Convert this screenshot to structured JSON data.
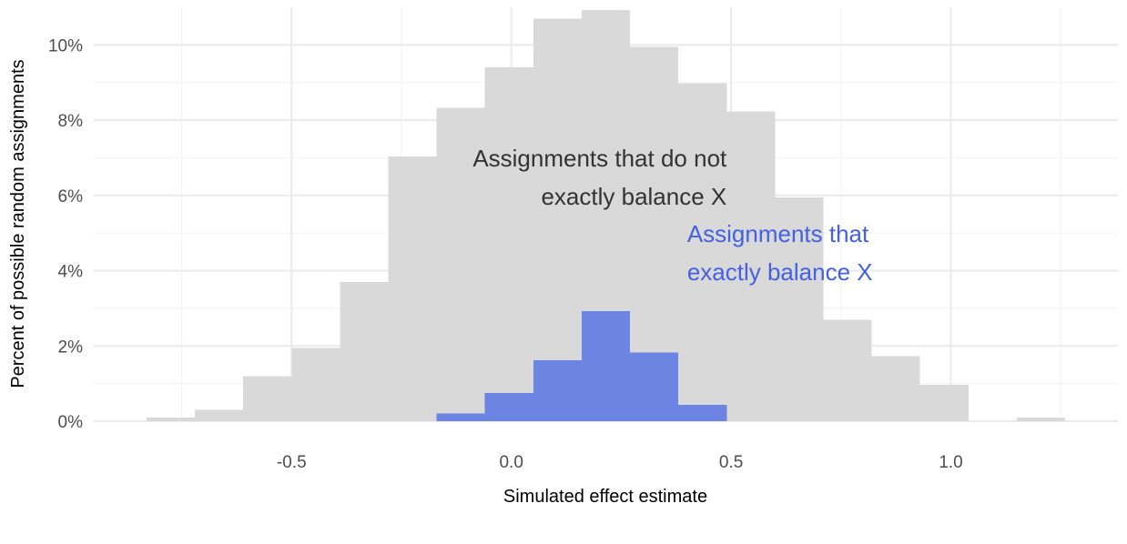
{
  "chart_data": {
    "type": "bar",
    "subtype": "overlaid-histogram",
    "title": "",
    "xlabel": "Simulated effect estimate",
    "ylabel": "Percent of possible random assignments",
    "xlim": [
      -0.95,
      1.38
    ],
    "ylim": [
      0,
      0.11
    ],
    "x_ticks": [
      {
        "value": -0.5,
        "label": "-0.5"
      },
      {
        "value": 0.0,
        "label": "0.0"
      },
      {
        "value": 0.5,
        "label": "0.5"
      },
      {
        "value": 1.0,
        "label": "1.0"
      }
    ],
    "y_ticks": [
      {
        "value": 0.0,
        "label": "0%"
      },
      {
        "value": 0.02,
        "label": "2%"
      },
      {
        "value": 0.04,
        "label": "4%"
      },
      {
        "value": 0.06,
        "label": "6%"
      },
      {
        "value": 0.08,
        "label": "8%"
      },
      {
        "value": 0.1,
        "label": "10%"
      }
    ],
    "grid": true,
    "legend": "none",
    "series": [
      {
        "key": "not_balanced",
        "color": "#d9d9d9",
        "bins": [
          {
            "x0": -0.83,
            "x1": -0.72,
            "value": 0.001
          },
          {
            "x0": -0.72,
            "x1": -0.61,
            "value": 0.003
          },
          {
            "x0": -0.61,
            "x1": -0.5,
            "value": 0.012
          },
          {
            "x0": -0.5,
            "x1": -0.39,
            "value": 0.0195
          },
          {
            "x0": -0.39,
            "x1": -0.28,
            "value": 0.037
          },
          {
            "x0": -0.28,
            "x1": -0.17,
            "value": 0.0703
          },
          {
            "x0": -0.17,
            "x1": -0.06,
            "value": 0.0833
          },
          {
            "x0": -0.06,
            "x1": 0.05,
            "value": 0.094
          },
          {
            "x0": 0.05,
            "x1": 0.16,
            "value": 0.107
          },
          {
            "x0": 0.16,
            "x1": 0.27,
            "value": 0.1093
          },
          {
            "x0": 0.27,
            "x1": 0.38,
            "value": 0.0995
          },
          {
            "x0": 0.38,
            "x1": 0.49,
            "value": 0.0898
          },
          {
            "x0": 0.49,
            "x1": 0.6,
            "value": 0.0823
          },
          {
            "x0": 0.6,
            "x1": 0.71,
            "value": 0.0595
          },
          {
            "x0": 0.71,
            "x1": 0.82,
            "value": 0.027
          },
          {
            "x0": 0.82,
            "x1": 0.93,
            "value": 0.0173
          },
          {
            "x0": 0.93,
            "x1": 1.04,
            "value": 0.0097
          },
          {
            "x0": 1.15,
            "x1": 1.26,
            "value": 0.001
          }
        ]
      },
      {
        "key": "balanced",
        "color": "#6c85e2",
        "bins": [
          {
            "x0": -0.17,
            "x1": -0.06,
            "value": 0.002
          },
          {
            "x0": -0.06,
            "x1": 0.05,
            "value": 0.0075
          },
          {
            "x0": 0.05,
            "x1": 0.16,
            "value": 0.0162
          },
          {
            "x0": 0.16,
            "x1": 0.27,
            "value": 0.0293
          },
          {
            "x0": 0.27,
            "x1": 0.38,
            "value": 0.0183
          },
          {
            "x0": 0.38,
            "x1": 0.49,
            "value": 0.0043
          }
        ]
      }
    ],
    "annotations": [
      {
        "key": "not_balanced_label",
        "lines": [
          "Assignments that do not",
          "exactly balance X"
        ],
        "align": "right",
        "x": 0.49,
        "y": 0.0645,
        "color": "#333333"
      },
      {
        "key": "balanced_label",
        "lines": [
          "Assignments that",
          "exactly balance X"
        ],
        "align": "left",
        "x": 0.4,
        "y": 0.0445,
        "color": "#4461e0"
      }
    ]
  }
}
